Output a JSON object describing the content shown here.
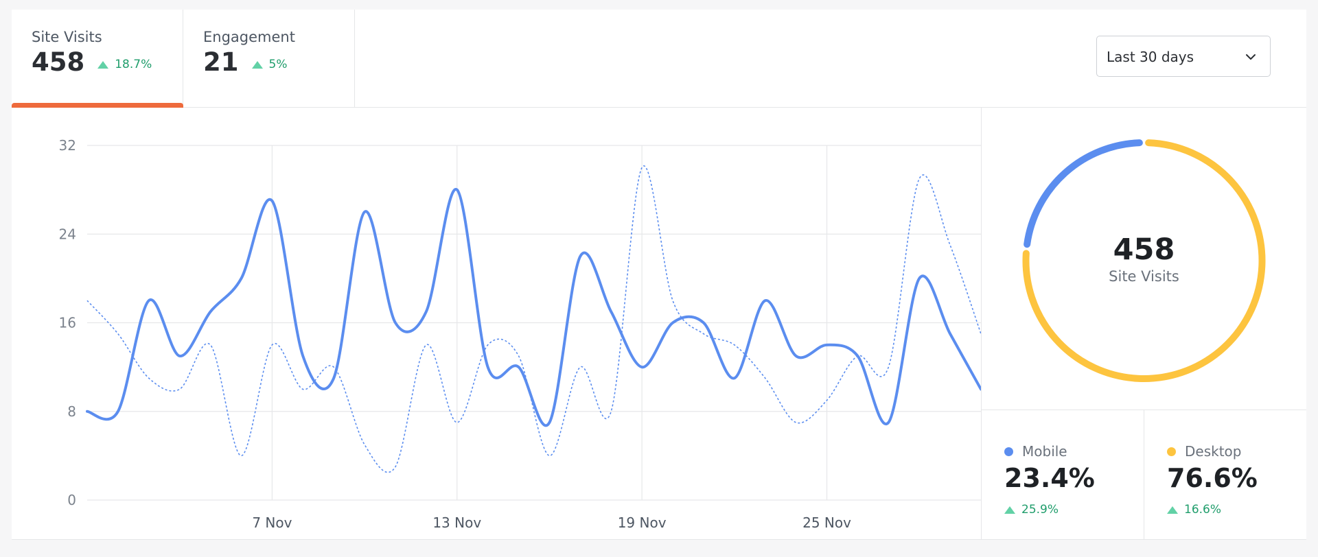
{
  "tabs": [
    {
      "label": "Site Visits",
      "value": "458",
      "trend": "18.7%",
      "active": true
    },
    {
      "label": "Engagement",
      "value": "21",
      "trend": "5%",
      "active": false
    }
  ],
  "range_select": {
    "value": "Last 30 days",
    "icon": "chevron-down-icon"
  },
  "colors": {
    "primary": "#5b8def",
    "secondary": "#5b8def",
    "mobile": "#5b8def",
    "desktop": "#fdc43f",
    "accent": "#ee6a3c",
    "trend_up": "#62d1a6"
  },
  "donut": {
    "value": "458",
    "label": "Site Visits"
  },
  "breakdown": [
    {
      "name": "Mobile",
      "percent": "23.4%",
      "trend": "25.9%",
      "share": 0.234
    },
    {
      "name": "Desktop",
      "percent": "76.6%",
      "trend": "16.6%",
      "share": 0.766
    }
  ],
  "chart_data": {
    "type": "line",
    "x": [
      1,
      2,
      3,
      4,
      5,
      6,
      7,
      8,
      9,
      10,
      11,
      12,
      13,
      14,
      15,
      16,
      17,
      18,
      19,
      20,
      21,
      22,
      23,
      24,
      25,
      26,
      27,
      28,
      29,
      30
    ],
    "x_tick_labels": [
      {
        "x": 7,
        "label": "7 Nov"
      },
      {
        "x": 13,
        "label": "13 Nov"
      },
      {
        "x": 19,
        "label": "19 Nov"
      },
      {
        "x": 25,
        "label": "25 Nov"
      }
    ],
    "ylim": [
      0,
      32
    ],
    "yticks": [
      0,
      8,
      16,
      24,
      32
    ],
    "grid": true,
    "series": [
      {
        "style": "solid",
        "values": [
          8,
          8,
          18,
          13,
          17,
          20,
          27,
          13,
          11,
          26,
          16,
          17,
          28,
          12,
          12,
          7,
          22,
          17,
          12,
          16,
          16,
          11,
          18,
          13,
          14,
          13,
          7,
          20,
          15,
          10
        ]
      },
      {
        "style": "dotted",
        "values": [
          18,
          15,
          11,
          10,
          14,
          4,
          14,
          10,
          12,
          5,
          3,
          14,
          7,
          14,
          13,
          4,
          12,
          8,
          30,
          18,
          15,
          14,
          11,
          7,
          9,
          13,
          12,
          29,
          23,
          15
        ]
      }
    ]
  }
}
